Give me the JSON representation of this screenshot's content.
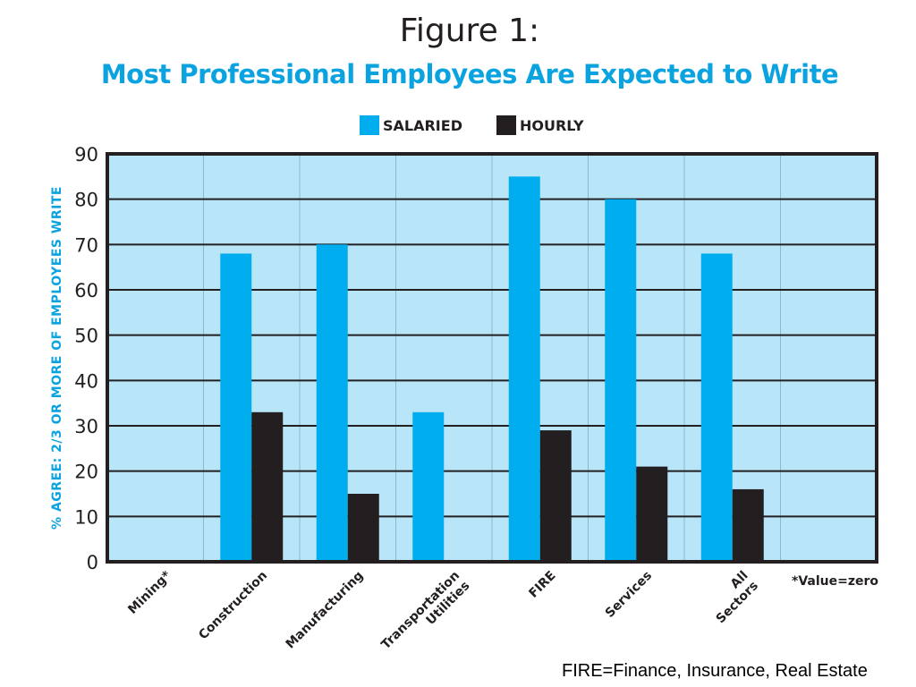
{
  "figure_label": "Figure 1:",
  "footnote": "FIRE=Finance, Insurance, Real Estate",
  "colors": {
    "salaried": "#00aeef",
    "hourly": "#231f20",
    "plot_bg": "#b9e5f9",
    "title": "#0aa3e0"
  },
  "chart_data": {
    "type": "bar",
    "title": "Most Professional Employees Are Expected to Write",
    "ylabel": "% AGREE: 2/3 OR MORE OF EMPLOYEES WRITE",
    "xlabel": "",
    "ylim": [
      0,
      90
    ],
    "yticks": [
      0,
      10,
      20,
      30,
      40,
      50,
      60,
      70,
      80,
      90
    ],
    "categories": [
      "Mining*",
      "Construction",
      "Manufacturing",
      "Transportation Utilities",
      "FIRE",
      "Services",
      "All Sectors"
    ],
    "series": [
      {
        "name": "SALARIED",
        "values": [
          0,
          68,
          70,
          33,
          85,
          80,
          68
        ]
      },
      {
        "name": "HOURLY",
        "values": [
          0,
          33,
          15,
          0,
          29,
          21,
          16
        ]
      }
    ],
    "annotation": "*Value=zero",
    "grid": true,
    "legend_position": "top-center"
  }
}
